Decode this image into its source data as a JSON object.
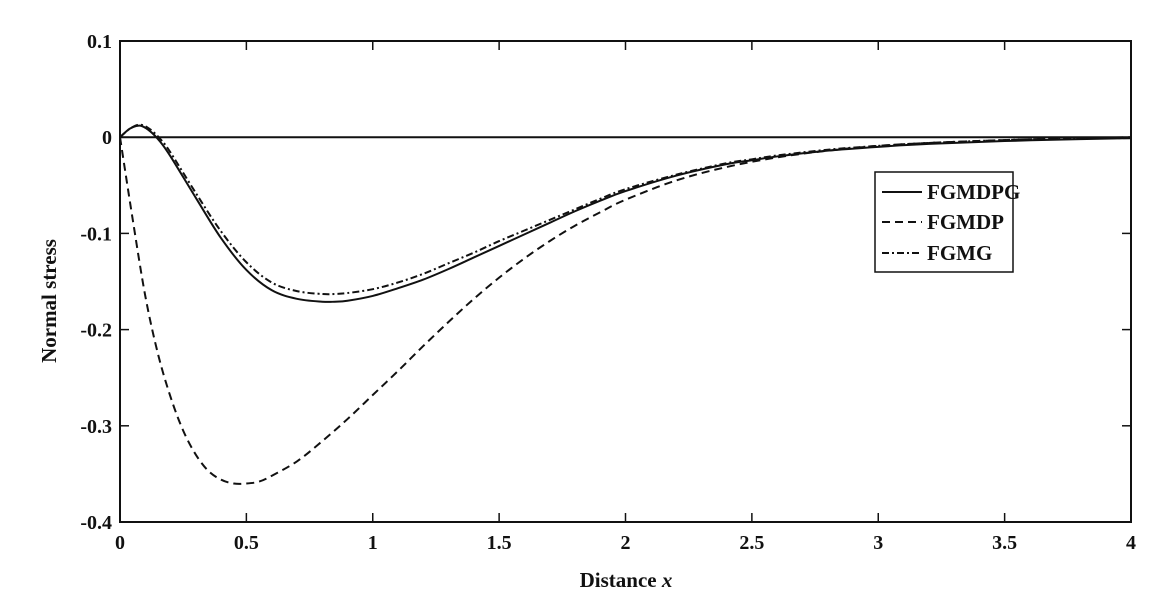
{
  "chart_data": {
    "type": "line",
    "title": "",
    "xlabel": "Distance",
    "xlabel_var": "x",
    "ylabel": "Normal stress",
    "xlim": [
      0,
      4
    ],
    "ylim": [
      -0.4,
      0.1
    ],
    "xticks": [
      0,
      0.5,
      1,
      1.5,
      2,
      2.5,
      3,
      3.5,
      4
    ],
    "xtick_labels": [
      "0",
      "0.5",
      "1",
      "1.5",
      "2",
      "2.5",
      "3",
      "3.5",
      "4"
    ],
    "yticks": [
      0.1,
      0,
      -0.1,
      -0.2,
      -0.3,
      -0.4
    ],
    "ytick_labels": [
      "0.1",
      "0",
      "-0.1",
      "-0.2",
      "-0.3",
      "-0.4"
    ],
    "grid": false,
    "legend_position": "right",
    "zero_line": true,
    "series": [
      {
        "name": "FGMDPG",
        "style": "solid",
        "x": [
          0,
          0.04,
          0.08,
          0.12,
          0.16,
          0.2,
          0.3,
          0.4,
          0.5,
          0.6,
          0.7,
          0.8,
          0.85,
          0.9,
          1.0,
          1.1,
          1.2,
          1.3,
          1.4,
          1.5,
          1.6,
          1.7,
          1.8,
          1.9,
          2.0,
          2.2,
          2.4,
          2.5,
          2.6,
          2.8,
          3.0,
          3.2,
          3.5,
          3.8,
          4.0
        ],
        "y": [
          0,
          0.009,
          0.012,
          0.006,
          -0.005,
          -0.02,
          -0.063,
          -0.105,
          -0.138,
          -0.159,
          -0.168,
          -0.171,
          -0.171,
          -0.17,
          -0.165,
          -0.157,
          -0.148,
          -0.137,
          -0.125,
          -0.113,
          -0.101,
          -0.089,
          -0.077,
          -0.066,
          -0.056,
          -0.04,
          -0.028,
          -0.024,
          -0.02,
          -0.014,
          -0.01,
          -0.007,
          -0.004,
          -0.002,
          -0.001
        ]
      },
      {
        "name": "FGMDP",
        "style": "dashed",
        "x": [
          0,
          0.05,
          0.1,
          0.15,
          0.2,
          0.25,
          0.3,
          0.35,
          0.4,
          0.45,
          0.5,
          0.55,
          0.6,
          0.7,
          0.8,
          0.9,
          1.0,
          1.1,
          1.2,
          1.3,
          1.4,
          1.5,
          1.6,
          1.7,
          1.8,
          1.9,
          2.0,
          2.2,
          2.4,
          2.6,
          2.8,
          3.0,
          3.2,
          3.5,
          3.8,
          4.0
        ],
        "y": [
          0,
          -0.085,
          -0.165,
          -0.225,
          -0.27,
          -0.305,
          -0.33,
          -0.347,
          -0.356,
          -0.36,
          -0.36,
          -0.358,
          -0.352,
          -0.337,
          -0.316,
          -0.293,
          -0.268,
          -0.243,
          -0.217,
          -0.192,
          -0.168,
          -0.146,
          -0.126,
          -0.108,
          -0.092,
          -0.078,
          -0.065,
          -0.045,
          -0.031,
          -0.021,
          -0.014,
          -0.009,
          -0.006,
          -0.003,
          -0.001,
          0
        ]
      },
      {
        "name": "FGMG",
        "style": "dashdot",
        "x": [
          0,
          0.04,
          0.08,
          0.12,
          0.16,
          0.2,
          0.3,
          0.4,
          0.5,
          0.6,
          0.7,
          0.8,
          0.85,
          0.9,
          1.0,
          1.1,
          1.2,
          1.3,
          1.4,
          1.5,
          1.6,
          1.7,
          1.8,
          1.9,
          2.0,
          2.2,
          2.4,
          2.5,
          2.6,
          2.8,
          3.0,
          3.2,
          3.5,
          3.8,
          4.0
        ],
        "y": [
          0,
          0.009,
          0.013,
          0.008,
          -0.002,
          -0.016,
          -0.058,
          -0.098,
          -0.13,
          -0.151,
          -0.16,
          -0.163,
          -0.163,
          -0.162,
          -0.158,
          -0.151,
          -0.142,
          -0.131,
          -0.12,
          -0.108,
          -0.097,
          -0.086,
          -0.075,
          -0.064,
          -0.054,
          -0.039,
          -0.027,
          -0.023,
          -0.019,
          -0.013,
          -0.009,
          -0.006,
          -0.003,
          -0.001,
          -0.001
        ]
      }
    ]
  }
}
